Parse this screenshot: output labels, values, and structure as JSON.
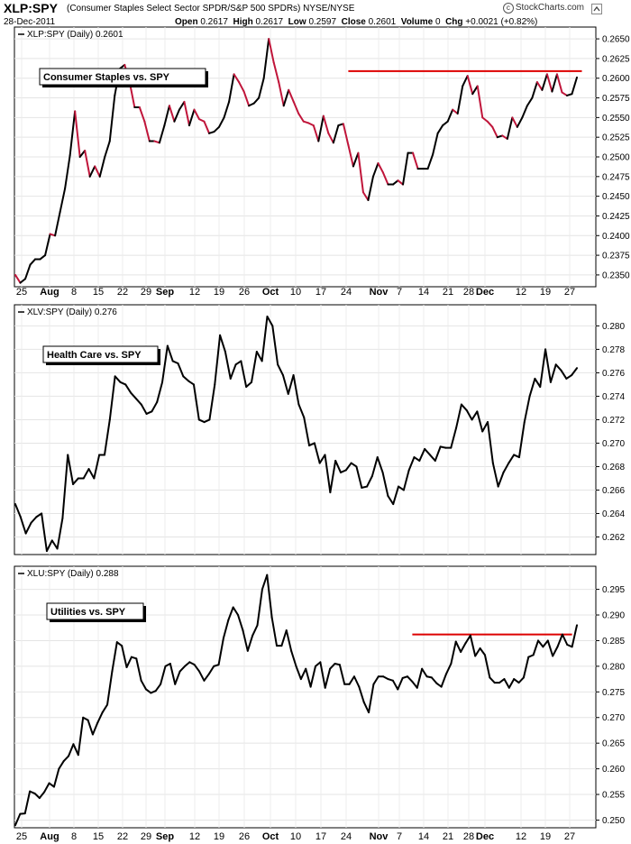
{
  "header": {
    "symbol": "XLP:SPY",
    "description": "(Consumer Staples Select Sector SPDR/S&P 500 SPDRs)  NYSE/NYSE",
    "date": "28-Dec-2011",
    "open_label": "Open",
    "open": "0.2617",
    "high_label": "High",
    "high": "0.2617",
    "low_label": "Low",
    "low": "0.2597",
    "close_label": "Close",
    "close": "0.2601",
    "volume_label": "Volume",
    "volume": "0",
    "chg_label": "Chg",
    "chg": "+0.0021 (+0.82%)",
    "brand": "StockCharts.com",
    "brand_mark": "c",
    "scroll_icon": "chevron-up-icon"
  },
  "chart_data": [
    {
      "type": "line",
      "legend": "XLP:SPY (Daily) 0.2601",
      "annotation": "Consumer Staples vs. SPY",
      "ylim": [
        0.2335,
        0.2665
      ],
      "y_ticks": [
        0.235,
        0.2375,
        0.24,
        0.2425,
        0.245,
        0.2475,
        0.25,
        0.2525,
        0.255,
        0.2575,
        0.26,
        0.2625,
        0.265
      ],
      "y_tick_labels": [
        "0.2350",
        "0.2375",
        "0.2400",
        "0.2425",
        "0.2450",
        "0.2475",
        "0.2500",
        "0.2525",
        "0.2550",
        "0.2575",
        "0.2600",
        "0.2625",
        "0.2650"
      ],
      "up_color": "#000000",
      "down_color": "#c0153a",
      "horizontal_line": {
        "value": 0.2609,
        "color": "#dd0000",
        "from_index": 67,
        "to_index": 114
      },
      "values": [
        0.235,
        0.234,
        0.2345,
        0.2363,
        0.237,
        0.237,
        0.2375,
        0.2402,
        0.24,
        0.243,
        0.246,
        0.2502,
        0.2558,
        0.25,
        0.2508,
        0.2475,
        0.2488,
        0.2475,
        0.25,
        0.252,
        0.2578,
        0.2612,
        0.2617,
        0.2595,
        0.2563,
        0.2563,
        0.2545,
        0.252,
        0.252,
        0.2518,
        0.254,
        0.2565,
        0.2545,
        0.256,
        0.257,
        0.254,
        0.256,
        0.2548,
        0.2545,
        0.253,
        0.2532,
        0.2538,
        0.255,
        0.257,
        0.2605,
        0.2595,
        0.2583,
        0.2565,
        0.2568,
        0.2575,
        0.26,
        0.265,
        0.262,
        0.2595,
        0.2565,
        0.2585,
        0.257,
        0.2555,
        0.2545,
        0.2543,
        0.254,
        0.252,
        0.2552,
        0.253,
        0.2518,
        0.254,
        0.2542,
        0.2515,
        0.2488,
        0.2505,
        0.2455,
        0.2445,
        0.2475,
        0.2492,
        0.248,
        0.2465,
        0.2465,
        0.247,
        0.2465,
        0.2505,
        0.2505,
        0.2485,
        0.2485,
        0.2485,
        0.2503,
        0.253,
        0.254,
        0.2545,
        0.256,
        0.2555,
        0.259,
        0.2603,
        0.258,
        0.259,
        0.255,
        0.2545,
        0.2538,
        0.2525,
        0.2527,
        0.2523,
        0.255,
        0.2538,
        0.255,
        0.2565,
        0.2575,
        0.2595,
        0.2585,
        0.2605,
        0.2583,
        0.2605,
        0.2582,
        0.2578,
        0.258,
        0.2601
      ]
    },
    {
      "type": "line",
      "legend": "XLV:SPY (Daily) 0.276",
      "annotation": "Health Care vs. SPY",
      "ylim": [
        0.2605,
        0.2818
      ],
      "y_ticks": [
        0.262,
        0.264,
        0.266,
        0.268,
        0.27,
        0.272,
        0.274,
        0.276,
        0.278,
        0.28
      ],
      "y_tick_labels": [
        "0.262",
        "0.264",
        "0.266",
        "0.268",
        "0.270",
        "0.272",
        "0.274",
        "0.276",
        "0.278",
        "0.280"
      ],
      "color": "#000000",
      "values": [
        0.2648,
        0.2637,
        0.2623,
        0.2632,
        0.2637,
        0.264,
        0.2608,
        0.2617,
        0.261,
        0.2636,
        0.269,
        0.2665,
        0.267,
        0.267,
        0.2678,
        0.267,
        0.269,
        0.269,
        0.272,
        0.2757,
        0.2752,
        0.275,
        0.2743,
        0.2738,
        0.2733,
        0.2725,
        0.2727,
        0.2735,
        0.2752,
        0.2783,
        0.277,
        0.2768,
        0.2757,
        0.2753,
        0.275,
        0.272,
        0.2718,
        0.272,
        0.275,
        0.2792,
        0.2778,
        0.2755,
        0.2767,
        0.277,
        0.2748,
        0.2752,
        0.2778,
        0.277,
        0.2808,
        0.28,
        0.2767,
        0.2758,
        0.2742,
        0.2758,
        0.2733,
        0.2722,
        0.2698,
        0.27,
        0.2683,
        0.269,
        0.2658,
        0.2685,
        0.2675,
        0.2677,
        0.2683,
        0.268,
        0.2662,
        0.2663,
        0.2672,
        0.2688,
        0.2675,
        0.2655,
        0.2648,
        0.2663,
        0.266,
        0.2677,
        0.2688,
        0.2685,
        0.2695,
        0.269,
        0.2685,
        0.2697,
        0.2696,
        0.2696,
        0.2713,
        0.2733,
        0.2728,
        0.272,
        0.2727,
        0.271,
        0.2718,
        0.2683,
        0.2663,
        0.2675,
        0.2683,
        0.269,
        0.2688,
        0.2718,
        0.274,
        0.2755,
        0.2748,
        0.278,
        0.2752,
        0.2767,
        0.2762,
        0.2755,
        0.2758,
        0.2764
      ]
    },
    {
      "type": "line",
      "legend": "XLU:SPY (Daily) 0.288",
      "annotation": "Utilities vs. SPY",
      "ylim": [
        0.2485,
        0.2995
      ],
      "y_ticks": [
        0.25,
        0.255,
        0.26,
        0.265,
        0.27,
        0.275,
        0.28,
        0.285,
        0.29,
        0.295
      ],
      "y_tick_labels": [
        "0.250",
        "0.255",
        "0.260",
        "0.265",
        "0.270",
        "0.275",
        "0.280",
        "0.285",
        "0.290",
        "0.295"
      ],
      "color": "#000000",
      "horizontal_line": {
        "value": 0.2862,
        "color": "#dd0000",
        "from_index": 82,
        "to_index": 115
      },
      "values": [
        0.249,
        0.2512,
        0.2513,
        0.2556,
        0.2552,
        0.2543,
        0.2555,
        0.2572,
        0.2565,
        0.26,
        0.2615,
        0.2625,
        0.2648,
        0.2627,
        0.27,
        0.2695,
        0.2667,
        0.269,
        0.271,
        0.2725,
        0.279,
        0.2847,
        0.284,
        0.2798,
        0.2818,
        0.2815,
        0.2772,
        0.2755,
        0.2748,
        0.2752,
        0.2765,
        0.28,
        0.2805,
        0.2765,
        0.279,
        0.28,
        0.2808,
        0.2803,
        0.279,
        0.2772,
        0.2785,
        0.28,
        0.2803,
        0.2855,
        0.289,
        0.2915,
        0.29,
        0.287,
        0.283,
        0.286,
        0.288,
        0.295,
        0.2978,
        0.2895,
        0.284,
        0.284,
        0.287,
        0.283,
        0.28,
        0.2775,
        0.2795,
        0.276,
        0.28,
        0.2808,
        0.2758,
        0.2795,
        0.2805,
        0.2803,
        0.2765,
        0.2765,
        0.278,
        0.276,
        0.273,
        0.271,
        0.2765,
        0.278,
        0.278,
        0.2775,
        0.2772,
        0.2755,
        0.2777,
        0.278,
        0.277,
        0.2758,
        0.2795,
        0.278,
        0.2778,
        0.2767,
        0.276,
        0.2785,
        0.2805,
        0.2848,
        0.2828,
        0.2845,
        0.286,
        0.282,
        0.2835,
        0.2822,
        0.2778,
        0.2768,
        0.2768,
        0.2775,
        0.2758,
        0.2775,
        0.2768,
        0.2778,
        0.2818,
        0.2822,
        0.285,
        0.2838,
        0.285,
        0.282,
        0.2838,
        0.2862,
        0.2842,
        0.2838,
        0.288
      ]
    }
  ],
  "x_axis": {
    "labels": [
      "25",
      "Aug",
      "8",
      "15",
      "22",
      "29",
      "Sep",
      "12",
      "19",
      "26",
      "Oct",
      "10",
      "17",
      "24",
      "Nov",
      "7",
      "14",
      "21",
      "28",
      "Dec",
      "12",
      "19",
      "27"
    ],
    "bold_labels": [
      "Aug",
      "Sep",
      "Oct",
      "Nov",
      "Dec"
    ]
  }
}
